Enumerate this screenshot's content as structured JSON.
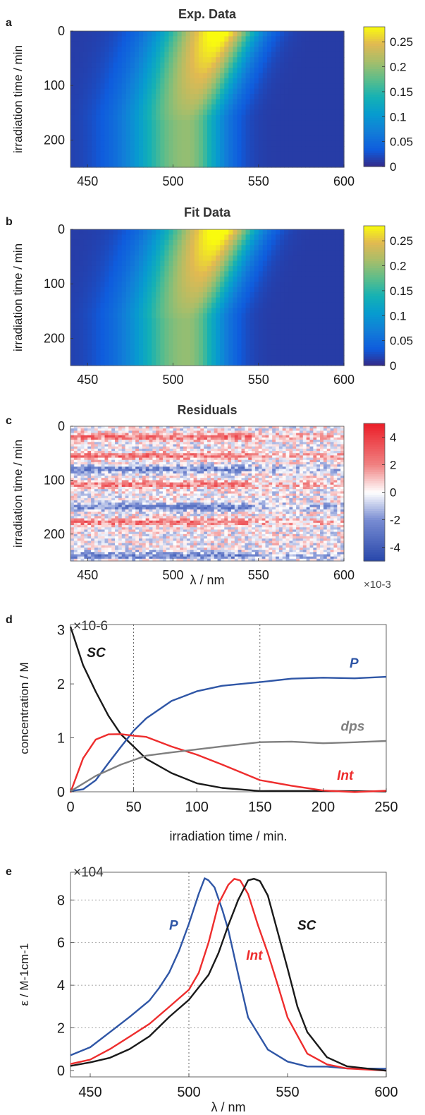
{
  "chart_data": [
    {
      "id": "a",
      "panel": "a",
      "type": "heatmap",
      "title": "Exp. Data",
      "xlabel": "",
      "ylabel": "irradiation time / min",
      "xlim": [
        440,
        600
      ],
      "ylim": [
        0,
        250
      ],
      "xticks": [
        450,
        500,
        550,
        600
      ],
      "yticks": [
        0,
        100,
        200
      ],
      "colormap": "parula",
      "colorbar": {
        "ticks": [
          0,
          0.05,
          0.1,
          0.15,
          0.2,
          0.25
        ],
        "range": [
          0,
          0.28
        ],
        "exponent": ""
      },
      "feature": {
        "peak_start": {
          "wavelength_nm": 528,
          "time_min": 0,
          "value": 0.28
        },
        "peak_end": {
          "wavelength_nm": 508,
          "time_min": 250,
          "value": 0.19
        }
      }
    },
    {
      "id": "b",
      "panel": "b",
      "type": "heatmap",
      "title": "Fit Data",
      "xlabel": "",
      "ylabel": "irradiation time / min",
      "xlim": [
        440,
        600
      ],
      "ylim": [
        0,
        250
      ],
      "xticks": [
        450,
        500,
        550,
        600
      ],
      "yticks": [
        0,
        100,
        200
      ],
      "colormap": "parula",
      "colorbar": {
        "ticks": [
          0,
          0.05,
          0.1,
          0.15,
          0.2,
          0.25
        ],
        "range": [
          0,
          0.28
        ],
        "exponent": ""
      },
      "feature": {
        "peak_start": {
          "wavelength_nm": 528,
          "time_min": 0,
          "value": 0.28
        },
        "peak_end": {
          "wavelength_nm": 508,
          "time_min": 250,
          "value": 0.19
        }
      }
    },
    {
      "id": "c",
      "panel": "c",
      "type": "heatmap",
      "title": "Residuals",
      "xlabel": "λ / nm",
      "ylabel": "irradiation time / min",
      "xlim": [
        440,
        600
      ],
      "ylim": [
        0,
        250
      ],
      "xticks": [
        450,
        500,
        550,
        600
      ],
      "yticks": [
        0,
        100,
        200
      ],
      "colormap": "blue-white-red",
      "colorbar": {
        "ticks": [
          -4,
          -2,
          0,
          2,
          4
        ],
        "range": [
          -5,
          5
        ],
        "exponent": "×10-3"
      },
      "bands": [
        {
          "time_min": 20,
          "sign": 1
        },
        {
          "time_min": 55,
          "sign": 1
        },
        {
          "time_min": 80,
          "sign": -1
        },
        {
          "time_min": 108,
          "sign": 1
        },
        {
          "time_min": 150,
          "sign": -1
        },
        {
          "time_min": 178,
          "sign": 1
        },
        {
          "time_min": 240,
          "sign": -1
        }
      ]
    },
    {
      "id": "d",
      "panel": "d",
      "type": "line",
      "title": "",
      "xlabel": "irradiation time / min.",
      "ylabel": "concentration / M",
      "y_exponent": "×10-6",
      "xlim": [
        0,
        250
      ],
      "ylim": [
        0,
        3.1
      ],
      "xticks": [
        0,
        50,
        100,
        150,
        200,
        250
      ],
      "yticks": [
        0,
        1,
        2,
        3
      ],
      "grid_x": [
        50,
        150
      ],
      "series": [
        {
          "name": "SC",
          "color": "#1a1a1a",
          "x": [
            0,
            10,
            20,
            30,
            40,
            50,
            60,
            80,
            100,
            120,
            150,
            200,
            250
          ],
          "y": [
            3.05,
            2.35,
            1.85,
            1.4,
            1.08,
            0.82,
            0.6,
            0.33,
            0.17,
            0.08,
            0.02,
            0.0,
            0.0
          ]
        },
        {
          "name": "P",
          "color": "#2f56a6",
          "x": [
            0,
            10,
            20,
            30,
            40,
            50,
            60,
            80,
            100,
            120,
            150,
            175,
            200,
            225,
            250
          ],
          "y": [
            0.0,
            0.05,
            0.22,
            0.52,
            0.85,
            1.12,
            1.36,
            1.68,
            1.87,
            1.96,
            2.05,
            2.1,
            2.12,
            2.12,
            2.13
          ]
        },
        {
          "name": "Int",
          "color": "#ee2d2d",
          "x": [
            0,
            10,
            20,
            30,
            40,
            50,
            60,
            80,
            100,
            120,
            150,
            175,
            200,
            225,
            250
          ],
          "y": [
            0.0,
            0.6,
            0.95,
            1.06,
            1.08,
            1.05,
            1.0,
            0.85,
            0.68,
            0.5,
            0.22,
            0.1,
            0.04,
            0.01,
            0.0
          ]
        },
        {
          "name": "dps",
          "color": "#7f7f7f",
          "x": [
            0,
            20,
            40,
            60,
            80,
            100,
            120,
            150,
            175,
            200,
            225,
            250
          ],
          "y": [
            0.0,
            0.28,
            0.5,
            0.65,
            0.75,
            0.8,
            0.85,
            0.9,
            0.91,
            0.92,
            0.93,
            0.94
          ]
        }
      ],
      "annotations": [
        {
          "text": "SC",
          "x": 13,
          "y": 2.5,
          "color": "#1a1a1a"
        },
        {
          "text": "P",
          "x": 221,
          "y": 2.3,
          "color": "#2f56a6"
        },
        {
          "text": "dps",
          "x": 214,
          "y": 1.13,
          "color": "#7f7f7f"
        },
        {
          "text": "Int",
          "x": 211,
          "y": 0.22,
          "color": "#ee2d2d"
        }
      ]
    },
    {
      "id": "e",
      "panel": "e",
      "type": "line",
      "title": "",
      "xlabel": "λ / nm",
      "ylabel": "ε / M-1cm-1",
      "y_exponent": "×104",
      "xlim": [
        440,
        600
      ],
      "ylim": [
        -0.3,
        9.3
      ],
      "xticks": [
        450,
        500,
        550,
        600
      ],
      "yticks": [
        0,
        2,
        4,
        6,
        8
      ],
      "grid_x": [
        500
      ],
      "series": [
        {
          "name": "P",
          "color": "#2f56a6",
          "x": [
            440,
            450,
            460,
            470,
            480,
            485,
            490,
            495,
            500,
            505,
            508,
            510,
            513,
            517,
            520,
            525,
            530,
            540,
            550,
            560,
            570,
            580,
            600
          ],
          "y": [
            0.7,
            1.1,
            1.8,
            2.5,
            3.3,
            3.9,
            4.6,
            5.6,
            6.9,
            8.3,
            9.0,
            8.9,
            8.6,
            7.5,
            6.6,
            4.5,
            2.5,
            1.0,
            0.4,
            0.2,
            0.2,
            0.1,
            0.1
          ]
        },
        {
          "name": "Int",
          "color": "#ee2d2d",
          "x": [
            440,
            450,
            460,
            470,
            480,
            490,
            500,
            505,
            510,
            515,
            520,
            523,
            526,
            530,
            535,
            540,
            545,
            550,
            560,
            570,
            580,
            600
          ],
          "y": [
            0.3,
            0.5,
            1.0,
            1.6,
            2.2,
            3.0,
            3.8,
            4.6,
            6.0,
            7.8,
            8.7,
            9.0,
            8.9,
            8.3,
            6.8,
            5.5,
            4.0,
            2.5,
            0.8,
            0.3,
            0.1,
            0.0
          ]
        },
        {
          "name": "SC",
          "color": "#1a1a1a",
          "x": [
            440,
            450,
            460,
            470,
            480,
            490,
            500,
            510,
            515,
            520,
            525,
            530,
            533,
            536,
            540,
            545,
            550,
            555,
            560,
            570,
            580,
            600
          ],
          "y": [
            0.2,
            0.4,
            0.6,
            1.0,
            1.6,
            2.5,
            3.3,
            4.5,
            5.5,
            6.8,
            8.0,
            8.9,
            9.0,
            8.9,
            8.2,
            6.5,
            4.8,
            3.0,
            1.8,
            0.6,
            0.2,
            0.0
          ]
        }
      ],
      "annotations": [
        {
          "text": "P",
          "x": 490,
          "y": 6.6,
          "color": "#2f56a6"
        },
        {
          "text": "Int",
          "x": 529,
          "y": 5.2,
          "color": "#ee2d2d"
        },
        {
          "text": "SC",
          "x": 555,
          "y": 6.6,
          "color": "#1a1a1a"
        }
      ]
    }
  ]
}
